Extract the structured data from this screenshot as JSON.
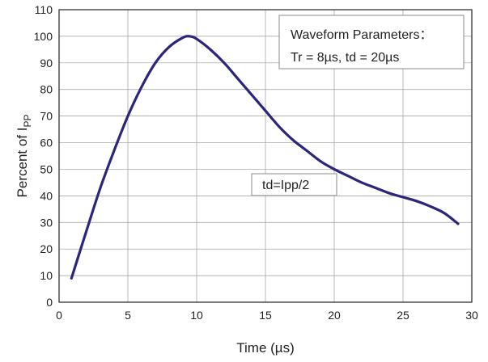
{
  "chart_data": {
    "type": "line",
    "xlabel": "Time (µs)",
    "ylabel": {
      "main": "Percent of I",
      "subscript": "PP"
    },
    "xlim": [
      0,
      30
    ],
    "ylim": [
      0,
      110
    ],
    "x_ticks": [
      0,
      5,
      10,
      15,
      20,
      25,
      30
    ],
    "y_ticks": [
      0,
      10,
      20,
      30,
      40,
      50,
      60,
      70,
      80,
      90,
      100,
      110
    ],
    "grid": true,
    "series": [
      {
        "color": "#2b2679",
        "x": [
          0.9,
          2,
          3,
          4,
          5,
          6,
          7,
          8,
          9,
          9.5,
          10,
          11,
          12,
          13,
          14,
          15,
          16,
          17,
          18,
          19,
          20,
          21,
          22,
          23,
          24,
          25,
          26,
          27,
          28,
          29
        ],
        "y": [
          9,
          27,
          43,
          57,
          70,
          81,
          90,
          96,
          99.5,
          100,
          99,
          95,
          90,
          84,
          78,
          72,
          66,
          61,
          57,
          53,
          50,
          47.5,
          45,
          43,
          41,
          39.5,
          38,
          36,
          33.5,
          29.5
        ]
      }
    ],
    "annotations": [
      {
        "lines": [
          "Waveform Parameters：",
          "Tr = 8µs, td = 20µs"
        ],
        "placement": "top-right"
      },
      {
        "lines": [
          "td=Ipp/2"
        ],
        "placement": "center-right"
      }
    ]
  }
}
